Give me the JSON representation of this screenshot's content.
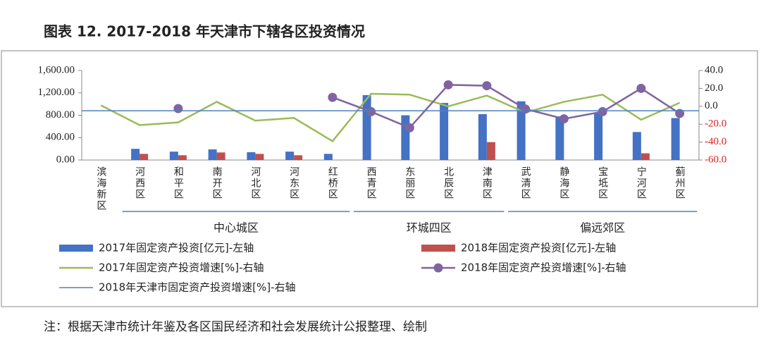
{
  "chart_data": {
    "type": "bar-line",
    "title": "图表 12. 2017-2018 年天津市下辖各区投资情况",
    "note": "注：根据天津市统计年鉴及各区国民经济和社会发展统计公报整理、绘制",
    "categories": [
      "滨海新区",
      "河西区",
      "和平区",
      "南开区",
      "河北区",
      "河东区",
      "红桥区",
      "西青区",
      "东丽区",
      "北辰区",
      "津南区",
      "武清区",
      "静海区",
      "宝坻区",
      "宁河区",
      "蓟州区"
    ],
    "groups": [
      {
        "label": "中心城区",
        "span": [
          1,
          6
        ]
      },
      {
        "label": "环城四区",
        "span": [
          7,
          10
        ]
      },
      {
        "label": "偏远郊区",
        "span": [
          11,
          15
        ]
      }
    ],
    "ylim": [
      0,
      1600
    ],
    "yticks": [
      {
        "value": 0,
        "label": "0.00"
      },
      {
        "value": 400,
        "label": "400.00"
      },
      {
        "value": 800,
        "label": "800.00"
      },
      {
        "value": 1200,
        "label": "1,200.00"
      },
      {
        "value": 1600,
        "label": "1,600.00"
      }
    ],
    "y2lim": [
      -60,
      40
    ],
    "y2ticks": [
      {
        "value": 40,
        "label": "40.0"
      },
      {
        "value": 20,
        "label": "20.0"
      },
      {
        "value": 0,
        "label": "0.0"
      },
      {
        "value": -20,
        "label": "-20.0"
      },
      {
        "value": -40,
        "label": "-40.0"
      },
      {
        "value": -60,
        "label": "-60.0"
      }
    ],
    "y2_negative_label_color": "#e02020",
    "series": [
      {
        "name": "2017年固定资产投资[亿元]-左轴",
        "type": "bar",
        "axis": "y",
        "color": "#4472c4",
        "values": [
          null,
          200,
          150,
          190,
          140,
          150,
          110,
          1160,
          800,
          1020,
          820,
          1050,
          780,
          840,
          500,
          750
        ]
      },
      {
        "name": "2018年固定资产投资[亿元]-左轴",
        "type": "bar",
        "axis": "y",
        "color": "#c0504d",
        "values": [
          null,
          110,
          85,
          135,
          110,
          85,
          null,
          null,
          null,
          null,
          320,
          null,
          null,
          null,
          120,
          null
        ]
      },
      {
        "name": "2017年固定资产投资增速[%]-右轴",
        "type": "line",
        "axis": "y2",
        "color": "#9bbb59",
        "values": [
          1,
          -21,
          -18,
          5,
          -16,
          -13,
          -39,
          14,
          13,
          0,
          12,
          -7,
          5,
          13,
          -15,
          4
        ]
      },
      {
        "name": "2018年固定资产投资增速[%]-右轴",
        "type": "line",
        "axis": "y2",
        "color": "#8064a2",
        "marker": true,
        "values": [
          null,
          null,
          -2.5,
          null,
          null,
          null,
          10,
          -6,
          -24,
          24,
          23,
          -3,
          -14,
          -6,
          20,
          -8
        ]
      },
      {
        "name": "2018年天津市固定资产投资增速[%]-右轴",
        "type": "hline",
        "axis": "y2",
        "color": "#4f81bd",
        "value": -5
      }
    ]
  }
}
